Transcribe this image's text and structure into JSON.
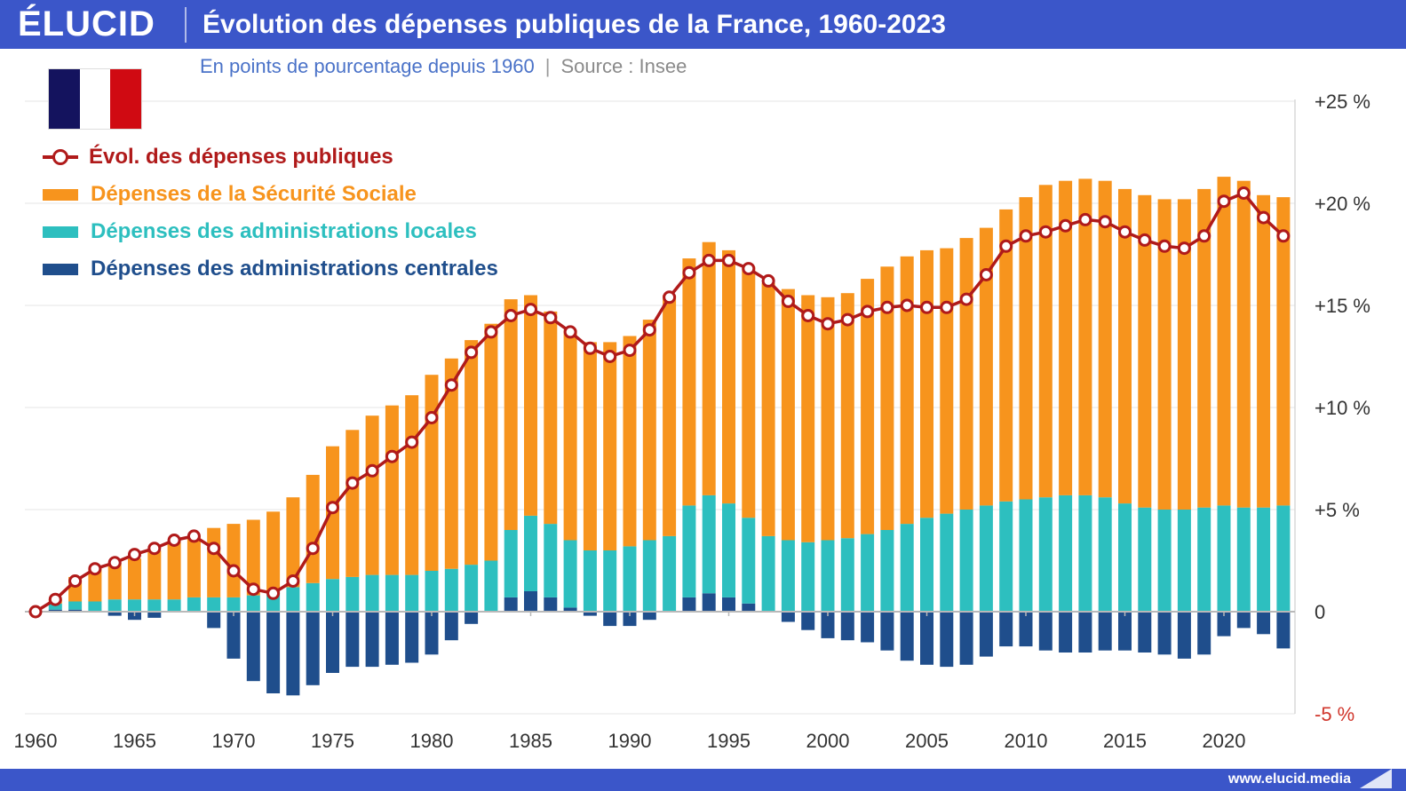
{
  "header": {
    "logo": "ÉLUCID",
    "title": "Évolution des dépenses publiques de la France, 1960-2023"
  },
  "subtitle": {
    "text": "En points de pourcentage depuis 1960",
    "separator": "|",
    "source": "Source : Insee"
  },
  "footer": {
    "url": "www.elucid.media"
  },
  "flag": {
    "name": "france-flag-icon",
    "colors": [
      "#14135e",
      "#ffffff",
      "#d00a12"
    ]
  },
  "colors": {
    "header": "#3b56c9",
    "total_line": "#b01a1a",
    "secu": "#f7941d",
    "locales": "#2dbfbf",
    "centrales": "#1f4e8c",
    "negative_tick": "#d0352b"
  },
  "chart_data": {
    "type": "bar",
    "stacked": true,
    "x": [
      1960,
      1961,
      1962,
      1963,
      1964,
      1965,
      1966,
      1967,
      1968,
      1969,
      1970,
      1971,
      1972,
      1973,
      1974,
      1975,
      1976,
      1977,
      1978,
      1979,
      1980,
      1981,
      1982,
      1983,
      1984,
      1985,
      1986,
      1987,
      1988,
      1989,
      1990,
      1991,
      1992,
      1993,
      1994,
      1995,
      1996,
      1997,
      1998,
      1999,
      2000,
      2001,
      2002,
      2003,
      2004,
      2005,
      2006,
      2007,
      2008,
      2009,
      2010,
      2011,
      2012,
      2013,
      2014,
      2015,
      2016,
      2017,
      2018,
      2019,
      2020,
      2021,
      2022,
      2023
    ],
    "x_ticks": [
      "1960",
      "1965",
      "1970",
      "1975",
      "1980",
      "1985",
      "1990",
      "1995",
      "2000",
      "2005",
      "2010",
      "2015",
      "2020"
    ],
    "y_ticks": [
      "+25 %",
      "+20 %",
      "+15 %",
      "+10 %",
      "+5 %",
      "0",
      "-5 %"
    ],
    "y_tick_values": [
      25,
      20,
      15,
      10,
      5,
      0,
      -5
    ],
    "ylim": [
      -5,
      25
    ],
    "grid": true,
    "legend_position": "top-left",
    "series": [
      {
        "name": "Dépenses des administrations centrales",
        "kind": "bar",
        "values": [
          0,
          0.1,
          0.1,
          0,
          -0.2,
          -0.4,
          -0.3,
          0,
          0,
          -0.8,
          -2.3,
          -3.4,
          -4.0,
          -4.1,
          -3.6,
          -3.0,
          -2.7,
          -2.7,
          -2.6,
          -2.5,
          -2.1,
          -1.4,
          -0.6,
          0,
          0.7,
          1.0,
          0.7,
          0.2,
          -0.2,
          -0.7,
          -0.7,
          -0.4,
          0,
          0.7,
          0.9,
          0.7,
          0.4,
          0,
          -0.5,
          -0.9,
          -1.3,
          -1.4,
          -1.5,
          -1.9,
          -2.4,
          -2.6,
          -2.7,
          -2.6,
          -2.2,
          -1.7,
          -1.7,
          -1.9,
          -2.0,
          -2.0,
          -1.9,
          -1.9,
          -2.0,
          -2.1,
          -2.3,
          -2.1,
          -1.2,
          -0.8,
          -1.1,
          -1.8
        ]
      },
      {
        "name": "Dépenses des administrations locales",
        "kind": "bar",
        "values": [
          0,
          0.3,
          0.4,
          0.5,
          0.6,
          0.6,
          0.6,
          0.6,
          0.7,
          0.7,
          0.7,
          0.8,
          1.0,
          1.2,
          1.4,
          1.6,
          1.7,
          1.8,
          1.8,
          1.8,
          2.0,
          2.1,
          2.3,
          2.5,
          3.3,
          3.7,
          3.6,
          3.3,
          3.0,
          3.0,
          3.2,
          3.5,
          3.7,
          4.5,
          4.8,
          4.6,
          4.2,
          3.7,
          3.5,
          3.4,
          3.5,
          3.6,
          3.8,
          4.0,
          4.3,
          4.6,
          4.8,
          5.0,
          5.2,
          5.4,
          5.5,
          5.6,
          5.7,
          5.7,
          5.6,
          5.3,
          5.1,
          5.0,
          5.0,
          5.1,
          5.2,
          5.1,
          5.1,
          5.2
        ]
      },
      {
        "name": "Dépenses de la Sécurité Sociale",
        "kind": "bar",
        "values": [
          0,
          0.2,
          1.2,
          1.6,
          1.8,
          2.0,
          2.4,
          2.9,
          3.0,
          3.4,
          3.6,
          3.7,
          3.9,
          4.4,
          5.3,
          6.5,
          7.2,
          7.8,
          8.3,
          8.8,
          9.6,
          10.3,
          11.0,
          11.6,
          11.3,
          10.8,
          10.4,
          10.3,
          10.2,
          10.2,
          10.3,
          10.8,
          11.8,
          12.1,
          12.4,
          12.4,
          12.3,
          12.4,
          12.3,
          12.1,
          11.9,
          12.0,
          12.5,
          12.9,
          13.1,
          13.1,
          13.0,
          13.3,
          13.6,
          14.3,
          14.8,
          15.3,
          15.4,
          15.5,
          15.5,
          15.4,
          15.3,
          15.2,
          15.2,
          15.6,
          16.1,
          16.0,
          15.3,
          15.1
        ]
      },
      {
        "name": "Évol. des dépenses publiques",
        "kind": "line",
        "values": [
          0,
          0.6,
          1.5,
          2.1,
          2.4,
          2.8,
          3.1,
          3.5,
          3.7,
          3.1,
          2.0,
          1.1,
          0.9,
          1.5,
          3.1,
          5.1,
          6.3,
          6.9,
          7.6,
          8.3,
          9.5,
          11.1,
          12.7,
          13.7,
          14.5,
          14.8,
          14.4,
          13.7,
          12.9,
          12.5,
          12.8,
          13.8,
          15.4,
          16.6,
          17.2,
          17.2,
          16.8,
          16.2,
          15.2,
          14.5,
          14.1,
          14.3,
          14.7,
          14.9,
          15.0,
          14.9,
          14.9,
          15.3,
          16.5,
          17.9,
          18.4,
          18.6,
          18.9,
          19.2,
          19.1,
          18.6,
          18.2,
          17.9,
          17.8,
          18.4,
          20.1,
          20.5,
          19.3,
          18.4
        ]
      }
    ]
  }
}
